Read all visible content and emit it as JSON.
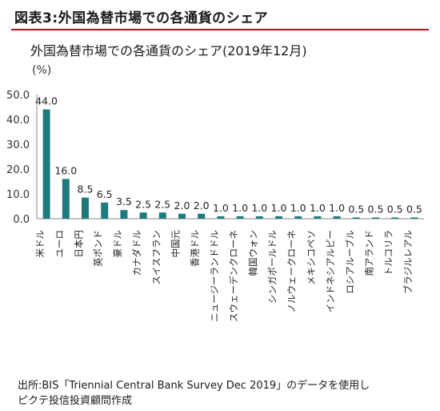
{
  "figure_title": "図表3:外国為替市場での各通貨のシェア",
  "footnote": {
    "line1": "出所:BIS「Triennial Central Bank Survey Dec 2019」のデータを使用し",
    "line2": "ピクテ投信投資顧問作成"
  },
  "colors": {
    "bar": "#1f7a80",
    "rule": "#b1121b",
    "axis": "#888888"
  },
  "chart_data": {
    "type": "bar",
    "title": "外国為替市場での各通貨のシェア(2019年12月)",
    "ylabel": "(%)",
    "xlabel": "",
    "ylim": [
      0,
      50
    ],
    "yticks": [
      "0.0",
      "10.0",
      "20.0",
      "30.0",
      "40.0",
      "50.0"
    ],
    "grid": false,
    "categories": [
      "米ドル",
      "ユーロ",
      "日本円",
      "英ポンド",
      "豪ドル",
      "カナダドル",
      "スイスフラン",
      "中国元",
      "香港ドル",
      "ニュージーランドドル",
      "スウェーデンクローネ",
      "韓国ウォン",
      "シンガポールドル",
      "ノルウェークローネ",
      "メキシコペソ",
      "インドネシアルピー",
      "ロシアルーブル",
      "南アランド",
      "トルコリラ",
      "ブラジルレアル"
    ],
    "values": [
      44.0,
      16.0,
      8.5,
      6.5,
      3.5,
      2.5,
      2.5,
      2.0,
      2.0,
      1.0,
      1.0,
      1.0,
      1.0,
      1.0,
      1.0,
      1.0,
      0.5,
      0.5,
      0.5,
      0.5
    ],
    "value_labels": [
      "44.0",
      "16.0",
      "8.5",
      "6.5",
      "3.5",
      "2.5",
      "2.5",
      "2.0",
      "2.0",
      "1.0",
      "1.0",
      "1.0",
      "1.0",
      "1.0",
      "1.0",
      "1.0",
      "0.5",
      "0.5",
      "0.5",
      "0.5"
    ]
  }
}
